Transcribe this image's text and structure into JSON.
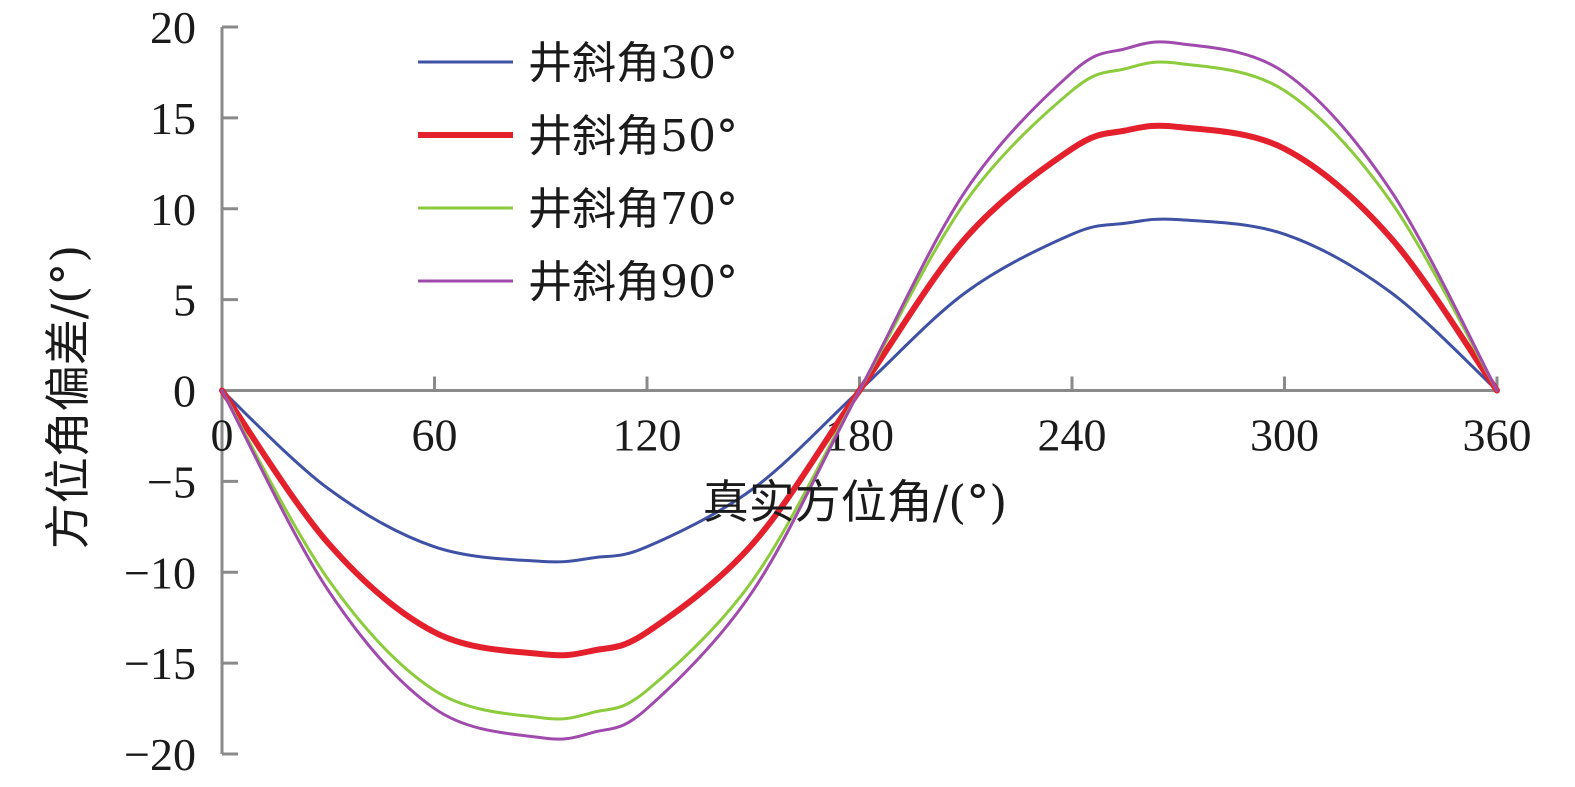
{
  "chart_data": {
    "type": "line",
    "title": "",
    "xlabel": "真实方位角/(°)",
    "ylabel": "方位角偏差/(°)",
    "xlim": [
      0,
      360
    ],
    "ylim": [
      -20,
      20
    ],
    "x_ticks": [
      0,
      60,
      120,
      180,
      240,
      300,
      360
    ],
    "y_ticks": [
      20,
      15,
      10,
      5,
      0,
      -5,
      -10,
      -15,
      -20
    ],
    "x_tick_labels": [
      "0",
      "60",
      "120",
      "180",
      "240",
      "300",
      "360"
    ],
    "y_tick_labels": [
      "20",
      "15",
      "10",
      "5",
      "0",
      "−5",
      "−10",
      "−15",
      "−20"
    ],
    "grid": false,
    "legend_position": "top-left",
    "x": [
      0,
      30,
      60,
      90,
      105,
      120,
      150,
      180,
      210,
      240,
      255,
      270,
      300,
      330,
      360
    ],
    "series": [
      {
        "name": "井斜角30°",
        "color": "#3f51a5",
        "values": [
          0,
          -5.4,
          -8.6,
          -9.4,
          -9.2,
          -8.6,
          -5.4,
          0,
          5.4,
          8.6,
          9.2,
          9.4,
          8.6,
          5.4,
          0
        ]
      },
      {
        "name": "井斜角50°",
        "color": "#e3202b",
        "values": [
          0,
          -8.4,
          -13.3,
          -14.5,
          -14.3,
          -13.3,
          -8.4,
          0,
          8.4,
          13.3,
          14.3,
          14.5,
          13.3,
          8.4,
          0
        ]
      },
      {
        "name": "井斜角70°",
        "color": "#8ccb3c",
        "values": [
          0,
          -10.4,
          -16.5,
          -18.0,
          -17.7,
          -16.5,
          -10.4,
          0,
          10.4,
          16.5,
          17.7,
          18.0,
          16.5,
          10.4,
          0
        ]
      },
      {
        "name": "井斜角90°",
        "color": "#a04aad",
        "values": [
          0,
          -11.0,
          -17.5,
          -19.1,
          -18.8,
          -17.5,
          -11.0,
          0,
          11.0,
          17.5,
          18.8,
          19.1,
          17.5,
          11.0,
          0
        ]
      }
    ]
  }
}
